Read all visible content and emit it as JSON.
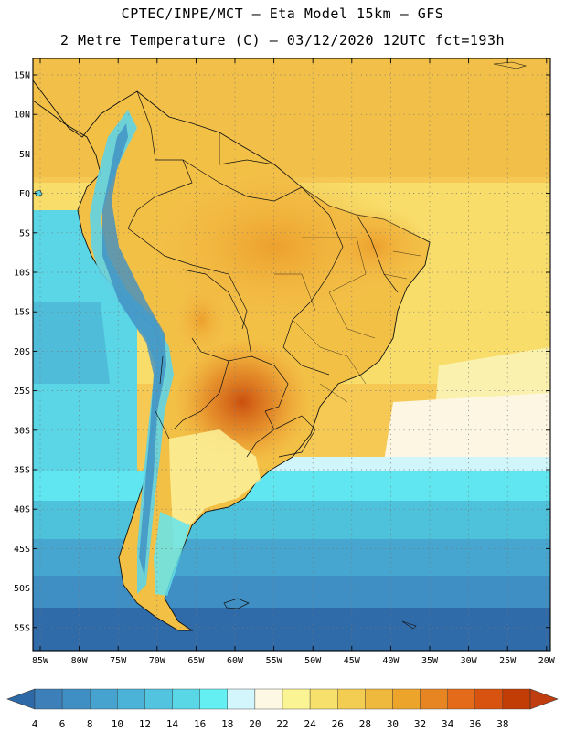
{
  "header": {
    "line1": "CPTEC/INPE/MCT –  Eta Model 15km – GFS",
    "line2": "2 Metre Temperature (C) – 03/12/2020 12UTC fct=193h"
  },
  "map": {
    "lat_labels": [
      "15N",
      "10N",
      "5N",
      "EQ",
      "5S",
      "10S",
      "15S",
      "20S",
      "25S",
      "30S",
      "35S",
      "40S",
      "45S",
      "50S",
      "55S"
    ],
    "lon_labels": [
      "85W",
      "80W",
      "75W",
      "70W",
      "65W",
      "60W",
      "55W",
      "50W",
      "45W",
      "40W",
      "35W",
      "30W",
      "25W",
      "20W"
    ]
  },
  "colorbar": {
    "labels": [
      "4",
      "6",
      "8",
      "10",
      "12",
      "14",
      "16",
      "18",
      "20",
      "22",
      "24",
      "26",
      "28",
      "30",
      "32",
      "34",
      "36",
      "38"
    ],
    "colors": [
      "#3d7fb8",
      "#3f8fc4",
      "#46a3cf",
      "#4cb3d8",
      "#52c4df",
      "#5ad7e7",
      "#64f0f3",
      "#d2f6fb",
      "#fdf8e4",
      "#fbf495",
      "#f8e06c",
      "#f3cc52",
      "#efb93d",
      "#eca42b",
      "#e88523",
      "#e36b19",
      "#d85210",
      "#c23c06"
    ],
    "low_color": "#2c69a6",
    "high_color": "#bf3d0e"
  }
}
